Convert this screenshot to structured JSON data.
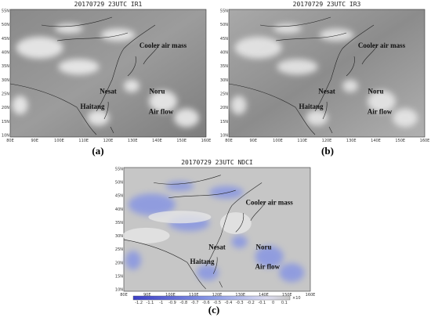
{
  "panels": [
    {
      "title": "20170729 23UTC IR1",
      "label": "(a)",
      "annotations": [
        "Cooler air mass",
        "Nesat",
        "Noru",
        "Haitang",
        "Air flow"
      ]
    },
    {
      "title": "20170729 23UTC IR3",
      "label": "(b)",
      "annotations": [
        "Cooler air mass",
        "Nesat",
        "Noru",
        "Haitang",
        "Air flow"
      ]
    },
    {
      "title": "20170729 23UTC NDCI",
      "label": "(c)",
      "annotations": [
        "Cooler air mass",
        "Nesat",
        "Noru",
        "Haitang",
        "Air flow"
      ]
    }
  ],
  "lat_labels": [
    "55N",
    "50N",
    "45N",
    "40N",
    "35N",
    "30N",
    "25N",
    "20N",
    "15N",
    "10N"
  ],
  "lon_labels": [
    "80E",
    "90E",
    "100E",
    "110E",
    "120E",
    "130E",
    "140E",
    "150E",
    "160E"
  ],
  "colorbar": {
    "ticks": [
      "-1.2",
      "-1.1",
      "-1",
      "-0.9",
      "-0.8",
      "-0.7",
      "-0.6",
      "-0.5",
      "-0.4",
      "-0.3",
      "-0.2",
      "-0.1",
      "0",
      "0.1"
    ],
    "unit": "×10"
  }
}
